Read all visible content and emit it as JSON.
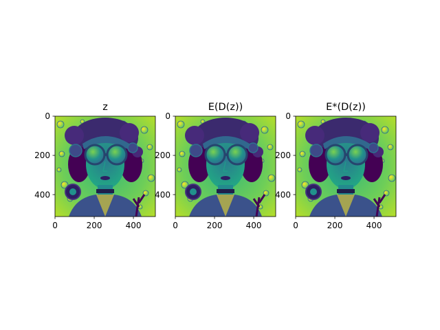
{
  "chart_data": {
    "type": "heatmap",
    "colormap": "viridis",
    "image_shape": [
      512,
      512
    ],
    "panels": [
      {
        "title": "z",
        "xticks": [
          0,
          200,
          400
        ],
        "yticks": [
          0,
          200,
          400
        ],
        "xlim": [
          0,
          512
        ],
        "ylim": [
          512,
          0
        ]
      },
      {
        "title": "E(D(z))",
        "xticks": [
          0,
          200,
          400
        ],
        "yticks": [
          0,
          200,
          400
        ],
        "xlim": [
          0,
          512
        ],
        "ylim": [
          512,
          0
        ]
      },
      {
        "title": "E*(D(z))",
        "xticks": [
          0,
          200,
          400
        ],
        "yticks": [
          0,
          200,
          400
        ],
        "xlim": [
          0,
          512
        ],
        "ylim": [
          512,
          0
        ]
      }
    ],
    "grid": false,
    "legend": "none",
    "image_content": "portrait of a woman with round goggles and steampunk-style headwear surrounded by bubbles"
  },
  "colors": {
    "viridis_dark": "#440154",
    "viridis_purple": "#3b528b",
    "viridis_teal": "#21918c",
    "viridis_green": "#5ec962",
    "viridis_yellow": "#fde725"
  }
}
